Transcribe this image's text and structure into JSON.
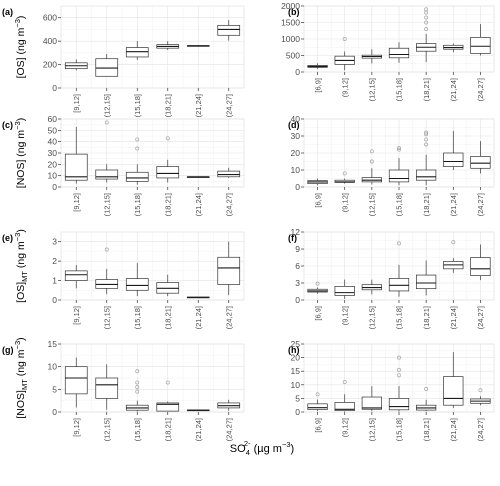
{
  "colors": {
    "box_stroke": "#333333",
    "outlier": "#a6a6a6",
    "grid": "#e3e3e3",
    "panel_border": "#d9d9d9"
  },
  "figure": {
    "x_axis_label": {
      "main": "SO",
      "sub": "4",
      "sup": "2-",
      "rest": " (µg m",
      "rest_sup": "−3",
      "close": ")"
    }
  },
  "chart_data": [
    {
      "panel": "a",
      "type": "box",
      "ylim": [
        0,
        700
      ],
      "yticks": [
        0,
        200,
        400,
        600
      ],
      "grid": true,
      "ylabel": {
        "main": "[OS]",
        "sub": "",
        "unit": " (ng m",
        "sup": "−3",
        "close": ")"
      },
      "categories": [
        "[9,12]",
        "(12,15]",
        "(15,18]",
        "(18,21]",
        "(21,24]",
        "(24,27]"
      ],
      "boxes": [
        {
          "min": 150,
          "q1": 165,
          "median": 190,
          "q3": 215,
          "max": 245,
          "outliers": []
        },
        {
          "min": 100,
          "q1": 100,
          "median": 170,
          "q3": 250,
          "max": 290,
          "outliers": []
        },
        {
          "min": 240,
          "q1": 265,
          "median": 310,
          "q3": 345,
          "max": 400,
          "outliers": []
        },
        {
          "min": 325,
          "q1": 340,
          "median": 355,
          "q3": 370,
          "max": 400,
          "outliers": []
        },
        {
          "min": 355,
          "q1": 357,
          "median": 360,
          "q3": 362,
          "max": 365,
          "outliers": []
        },
        {
          "min": 405,
          "q1": 450,
          "median": 500,
          "q3": 535,
          "max": 580,
          "outliers": []
        }
      ]
    },
    {
      "panel": "b",
      "type": "box",
      "ylim": [
        0,
        2000
      ],
      "yticks": [
        0,
        500,
        1000,
        1500,
        2000
      ],
      "grid": true,
      "ylabel": null,
      "categories": [
        "[6,9]",
        "(9,12]",
        "(12,15]",
        "(15,18]",
        "(18,21]",
        "(21,24]",
        "(24,27]"
      ],
      "boxes": [
        {
          "min": 100,
          "q1": 140,
          "median": 170,
          "q3": 200,
          "max": 260,
          "outliers": []
        },
        {
          "min": 50,
          "q1": 230,
          "median": 350,
          "q3": 480,
          "max": 620,
          "outliers": [
            1000
          ]
        },
        {
          "min": 260,
          "q1": 420,
          "median": 470,
          "q3": 510,
          "max": 690,
          "outliers": []
        },
        {
          "min": 280,
          "q1": 430,
          "median": 530,
          "q3": 720,
          "max": 900,
          "outliers": []
        },
        {
          "min": 300,
          "q1": 630,
          "median": 750,
          "q3": 860,
          "max": 1150,
          "outliers": [
            1300,
            1500,
            1650,
            1800,
            1900
          ]
        },
        {
          "min": 600,
          "q1": 690,
          "median": 740,
          "q3": 810,
          "max": 860,
          "outliers": []
        },
        {
          "min": 500,
          "q1": 560,
          "median": 780,
          "q3": 1050,
          "max": 1450,
          "outliers": []
        }
      ]
    },
    {
      "panel": "c",
      "type": "box",
      "ylim": [
        0,
        60
      ],
      "yticks": [
        0,
        10,
        20,
        30,
        40,
        50,
        60
      ],
      "grid": true,
      "ylabel": {
        "main": "[NOS]",
        "sub": "",
        "unit": " (ng m",
        "sup": "−3",
        "close": ")"
      },
      "categories": [
        "[9,12]",
        "(12,15]",
        "(15,18]",
        "(18,21]",
        "(21,24]",
        "(24,27]"
      ],
      "boxes": [
        {
          "min": 3,
          "q1": 6,
          "median": 9,
          "q3": 29,
          "max": 53,
          "outliers": []
        },
        {
          "min": 4,
          "q1": 7,
          "median": 9,
          "q3": 15,
          "max": 20,
          "outliers": [
            57
          ]
        },
        {
          "min": 2,
          "q1": 5,
          "median": 8,
          "q3": 13,
          "max": 20,
          "outliers": [
            34,
            42
          ]
        },
        {
          "min": 4,
          "q1": 8,
          "median": 12,
          "q3": 18,
          "max": 24,
          "outliers": [
            43
          ]
        },
        {
          "min": 9,
          "q1": 9,
          "median": 9,
          "q3": 9,
          "max": 9,
          "outliers": []
        },
        {
          "min": 8,
          "q1": 9,
          "median": 11,
          "q3": 14,
          "max": 17,
          "outliers": []
        }
      ]
    },
    {
      "panel": "d",
      "type": "box",
      "ylim": [
        0,
        40
      ],
      "yticks": [
        0,
        10,
        20,
        30,
        40
      ],
      "grid": true,
      "ylabel": null,
      "categories": [
        "[6,9]",
        "(9,12]",
        "(12,15]",
        "(15,18]",
        "(18,21]",
        "(21,24]",
        "(24,27]"
      ],
      "boxes": [
        {
          "min": 1,
          "q1": 2,
          "median": 3,
          "q3": 3.8,
          "max": 5,
          "outliers": []
        },
        {
          "min": 2,
          "q1": 2.7,
          "median": 3,
          "q3": 4,
          "max": 5,
          "outliers": [
            8
          ]
        },
        {
          "min": 1.5,
          "q1": 3,
          "median": 4,
          "q3": 5.5,
          "max": 11,
          "outliers": [
            15,
            21
          ]
        },
        {
          "min": 1,
          "q1": 3,
          "median": 5,
          "q3": 10,
          "max": 17,
          "outliers": [
            22,
            23
          ]
        },
        {
          "min": 1,
          "q1": 4,
          "median": 6,
          "q3": 10,
          "max": 19,
          "outliers": [
            25,
            28,
            31,
            32
          ]
        },
        {
          "min": 10,
          "q1": 12,
          "median": 15,
          "q3": 20,
          "max": 33,
          "outliers": []
        },
        {
          "min": 8,
          "q1": 11,
          "median": 14,
          "q3": 18,
          "max": 27,
          "outliers": []
        }
      ]
    },
    {
      "panel": "e",
      "type": "box",
      "ylim": [
        0,
        3.5
      ],
      "yticks": [
        0,
        1,
        2,
        3
      ],
      "grid": true,
      "ylabel": {
        "main": "[OS]",
        "sub": "MT",
        "unit": " (ng m",
        "sup": "−3",
        "close": ")"
      },
      "categories": [
        "[9,12]",
        "(12,15]",
        "(15,18]",
        "(18,21]",
        "(21,24]",
        "(24,27]"
      ],
      "boxes": [
        {
          "min": 0.6,
          "q1": 1.0,
          "median": 1.3,
          "q3": 1.5,
          "max": 1.8,
          "outliers": []
        },
        {
          "min": 0.3,
          "q1": 0.6,
          "median": 0.8,
          "q3": 1.05,
          "max": 1.6,
          "outliers": [
            2.6
          ]
        },
        {
          "min": 0.2,
          "q1": 0.5,
          "median": 0.75,
          "q3": 1.1,
          "max": 1.9,
          "outliers": []
        },
        {
          "min": 0.2,
          "q1": 0.35,
          "median": 0.6,
          "q3": 0.9,
          "max": 1.3,
          "outliers": []
        },
        {
          "min": 0.12,
          "q1": 0.13,
          "median": 0.14,
          "q3": 0.15,
          "max": 0.16,
          "outliers": []
        },
        {
          "min": 0.25,
          "q1": 0.8,
          "median": 1.65,
          "q3": 2.2,
          "max": 3.0,
          "outliers": []
        }
      ]
    },
    {
      "panel": "f",
      "type": "box",
      "ylim": [
        0,
        12
      ],
      "yticks": [
        0,
        3,
        6,
        9,
        12
      ],
      "grid": true,
      "ylabel": null,
      "categories": [
        "[6,9]",
        "(9,12]",
        "(12,15]",
        "(15,18]",
        "(18,21]",
        "(21,24]",
        "(24,27]"
      ],
      "boxes": [
        {
          "min": 1.1,
          "q1": 1.4,
          "median": 1.6,
          "q3": 1.9,
          "max": 2.2,
          "outliers": [
            2.9
          ]
        },
        {
          "min": 0.2,
          "q1": 0.8,
          "median": 1.3,
          "q3": 2.4,
          "max": 3.6,
          "outliers": []
        },
        {
          "min": 1.0,
          "q1": 1.8,
          "median": 2.2,
          "q3": 2.7,
          "max": 3.6,
          "outliers": []
        },
        {
          "min": 0.6,
          "q1": 1.6,
          "median": 2.6,
          "q3": 3.8,
          "max": 6.2,
          "outliers": [
            10.0
          ]
        },
        {
          "min": 0.8,
          "q1": 2.0,
          "median": 3.0,
          "q3": 4.4,
          "max": 7.0,
          "outliers": []
        },
        {
          "min": 4.8,
          "q1": 5.5,
          "median": 6.2,
          "q3": 6.8,
          "max": 7.4,
          "outliers": [
            10.2
          ]
        },
        {
          "min": 3.5,
          "q1": 4.3,
          "median": 5.5,
          "q3": 7.5,
          "max": 9.8,
          "outliers": []
        }
      ]
    },
    {
      "panel": "g",
      "type": "box",
      "ylim": [
        0,
        15
      ],
      "yticks": [
        0,
        5,
        10,
        15
      ],
      "grid": true,
      "ylabel": {
        "main": "[NOS]",
        "sub": "MT",
        "unit": " (ng m",
        "sup": "−3",
        "close": ")"
      },
      "categories": [
        "[9,12]",
        "(12,15]",
        "(15,18]",
        "(18,21]",
        "(21,24]",
        "(24,27]"
      ],
      "boxes": [
        {
          "min": 1,
          "q1": 4,
          "median": 7.5,
          "q3": 10,
          "max": 12,
          "outliers": []
        },
        {
          "min": 0.5,
          "q1": 3,
          "median": 6,
          "q3": 7.5,
          "max": 10.5,
          "outliers": []
        },
        {
          "min": 0.1,
          "q1": 0.4,
          "median": 0.9,
          "q3": 1.5,
          "max": 2.5,
          "outliers": [
            4.5,
            5.5,
            6.5,
            9.0
          ]
        },
        {
          "min": 0.1,
          "q1": 0.2,
          "median": 1.7,
          "q3": 2.0,
          "max": 2.3,
          "outliers": [
            6.5
          ]
        },
        {
          "min": 0.3,
          "q1": 0.35,
          "median": 0.4,
          "q3": 0.45,
          "max": 0.5,
          "outliers": []
        },
        {
          "min": 0.3,
          "q1": 0.9,
          "median": 1.4,
          "q3": 2.0,
          "max": 2.7,
          "outliers": []
        }
      ]
    },
    {
      "panel": "h",
      "type": "box",
      "ylim": [
        0,
        25
      ],
      "yticks": [
        0,
        5,
        10,
        15,
        20,
        25
      ],
      "grid": true,
      "ylabel": null,
      "categories": [
        "[6,9]",
        "(9,12]",
        "(12,15]",
        "(15,18]",
        "(18,21]",
        "(21,24]",
        "(24,27]"
      ],
      "boxes": [
        {
          "min": 0.3,
          "q1": 0.9,
          "median": 1.6,
          "q3": 3.0,
          "max": 4.6,
          "outliers": [
            6.5
          ]
        },
        {
          "min": 0.2,
          "q1": 0.5,
          "median": 1.0,
          "q3": 3.5,
          "max": 6.5,
          "outliers": [
            11.0
          ]
        },
        {
          "min": 0.3,
          "q1": 1.0,
          "median": 1.5,
          "q3": 5.5,
          "max": 9.5,
          "outliers": []
        },
        {
          "min": 0.2,
          "q1": 0.8,
          "median": 2.0,
          "q3": 5.0,
          "max": 9.5,
          "outliers": [
            13.5,
            15.5,
            20.0
          ]
        },
        {
          "min": 0.3,
          "q1": 0.7,
          "median": 1.5,
          "q3": 2.5,
          "max": 4.5,
          "outliers": [
            8.5
          ]
        },
        {
          "min": 1.5,
          "q1": 2.5,
          "median": 5.0,
          "q3": 13.0,
          "max": 22.0,
          "outliers": []
        },
        {
          "min": 2.5,
          "q1": 3.2,
          "median": 4.0,
          "q3": 4.8,
          "max": 5.8,
          "outliers": [
            8.0
          ]
        }
      ]
    }
  ]
}
